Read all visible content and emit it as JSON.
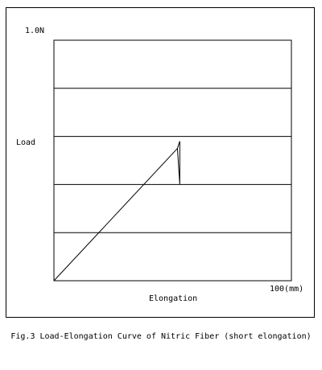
{
  "chart_data": {
    "type": "line",
    "title": "",
    "ylabel": "Load",
    "xlabel": "Elongation",
    "y_max_label": "1.0N",
    "x_max_label": "100(mm)",
    "xlim": [
      0,
      100
    ],
    "ylim": [
      0,
      1.0
    ],
    "grid": true,
    "y_gridlines": [
      0.2,
      0.4,
      0.6,
      0.8
    ],
    "series": [
      {
        "x": [
          0,
          52
        ],
        "y": [
          0,
          0.55
        ]
      },
      {
        "x": [
          52,
          53,
          53,
          52
        ],
        "y": [
          0.55,
          0.58,
          0.4,
          0.55
        ]
      }
    ]
  },
  "caption": "Fig.3 Load-Elongation Curve of Nitric Fiber (short elongation)"
}
